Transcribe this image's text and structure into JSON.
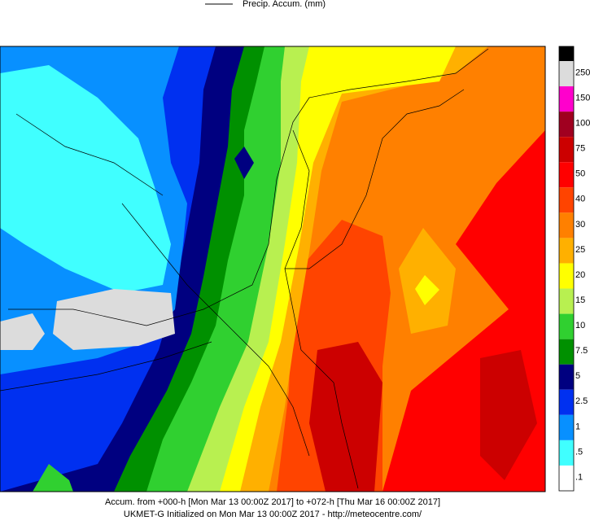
{
  "legend": {
    "label": "Precip. Accum. (mm)"
  },
  "colorbar": {
    "levels": [
      {
        "label": "250",
        "color": "#dcdcdc"
      },
      {
        "label": "150",
        "color": "#ff00cc"
      },
      {
        "label": "100",
        "color": "#a00020"
      },
      {
        "label": "75",
        "color": "#cc0000"
      },
      {
        "label": "50",
        "color": "#ff0000"
      },
      {
        "label": "40",
        "color": "#ff4400"
      },
      {
        "label": "30",
        "color": "#ff8000"
      },
      {
        "label": "25",
        "color": "#ffb000"
      },
      {
        "label": "20",
        "color": "#ffff00"
      },
      {
        "label": "15",
        "color": "#b8f050"
      },
      {
        "label": "10",
        "color": "#30d030"
      },
      {
        "label": "7.5",
        "color": "#009000"
      },
      {
        "label": "5",
        "color": "#000080"
      },
      {
        "label": "2.5",
        "color": "#0030f0"
      },
      {
        "label": "1",
        "color": "#0890ff"
      },
      {
        "label": ".5",
        "color": "#40ffff"
      },
      {
        "label": ".1",
        "color": "#ffffff"
      }
    ]
  },
  "footer": {
    "line1": "Accum. from +000-h [Mon Mar 13 00:00Z 2017] to +072-h [Thu Mar 16 00:00Z 2017]",
    "line2": "UKMET-G Initialized on Mon Mar 13 00:00Z 2017 - http://meteocentre.com/"
  }
}
